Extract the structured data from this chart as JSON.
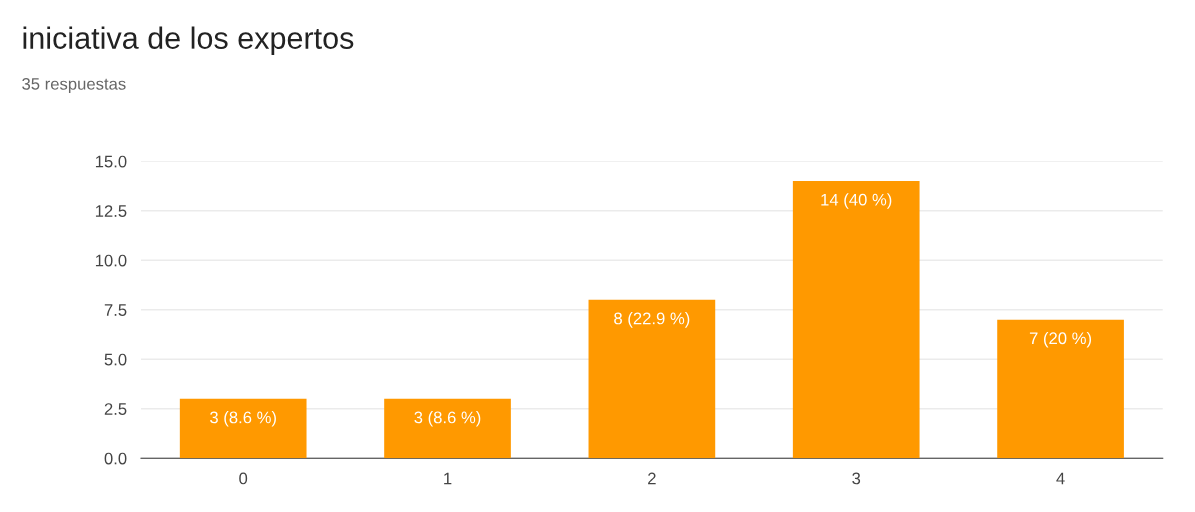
{
  "chart_data": {
    "type": "bar",
    "title": "iniciativa de los expertos",
    "subtitle": "35 respuestas",
    "categories": [
      "0",
      "1",
      "2",
      "3",
      "4"
    ],
    "values": [
      3,
      3,
      8,
      14,
      7
    ],
    "value_labels": [
      "3 (8.6 %)",
      "3 (8.6 %)",
      "8 (22.9 %)",
      "14 (40 %)",
      "7 (20 %)"
    ],
    "color": "#ff9900",
    "ylim": [
      0,
      15
    ],
    "yticks": [
      {
        "value": 0,
        "label": "0.0"
      },
      {
        "value": 2.5,
        "label": "2.5"
      },
      {
        "value": 5,
        "label": "5.0"
      },
      {
        "value": 7.5,
        "label": "7.5"
      },
      {
        "value": 10,
        "label": "10.0"
      },
      {
        "value": 12.5,
        "label": "12.5"
      },
      {
        "value": 15,
        "label": "15.0"
      }
    ],
    "grid": "y"
  }
}
